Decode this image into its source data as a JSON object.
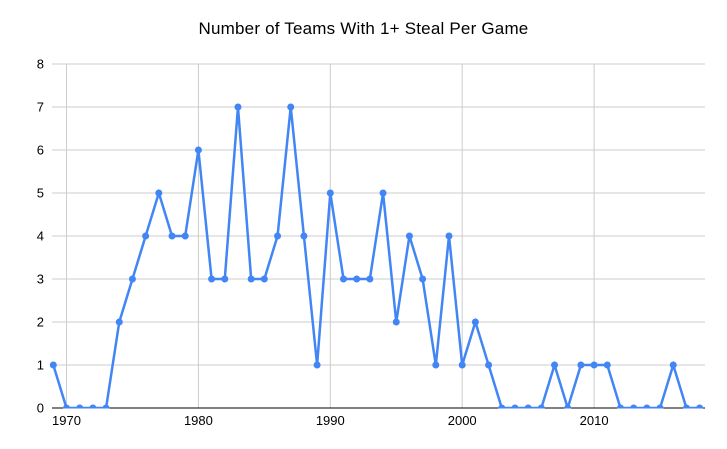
{
  "chart_data": {
    "type": "line",
    "title": "Number of Teams With 1+ Steal Per Game",
    "xlabel": "",
    "ylabel": "",
    "x": [
      1969,
      1970,
      1971,
      1972,
      1973,
      1974,
      1975,
      1976,
      1977,
      1978,
      1979,
      1980,
      1981,
      1982,
      1983,
      1984,
      1985,
      1986,
      1987,
      1988,
      1989,
      1990,
      1991,
      1992,
      1993,
      1994,
      1995,
      1996,
      1997,
      1998,
      1999,
      2000,
      2001,
      2002,
      2003,
      2004,
      2005,
      2006,
      2007,
      2008,
      2009,
      2010,
      2011,
      2012,
      2013,
      2014,
      2015,
      2016,
      2017,
      2018
    ],
    "values": [
      1,
      0,
      0,
      0,
      0,
      2,
      3,
      4,
      5,
      4,
      4,
      6,
      3,
      3,
      7,
      3,
      3,
      4,
      7,
      4,
      1,
      5,
      3,
      3,
      3,
      5,
      2,
      4,
      3,
      1,
      4,
      1,
      2,
      1,
      0,
      0,
      0,
      0,
      1,
      0,
      1,
      1,
      1,
      0,
      0,
      0,
      0,
      1,
      0,
      0
    ],
    "ylim": [
      0,
      8
    ],
    "yticks": [
      0,
      1,
      2,
      3,
      4,
      5,
      6,
      7,
      8
    ],
    "xticks": [
      1970,
      1980,
      1990,
      2000,
      2010
    ],
    "grid": true,
    "legend_position": "none",
    "marker": "circle",
    "colors": {
      "line": "#4285f4",
      "point": "#4285f4",
      "grid": "#cccccc",
      "axis": "#000000",
      "tick_text": "#000000",
      "title_text": "#000000",
      "background": "#ffffff"
    }
  }
}
